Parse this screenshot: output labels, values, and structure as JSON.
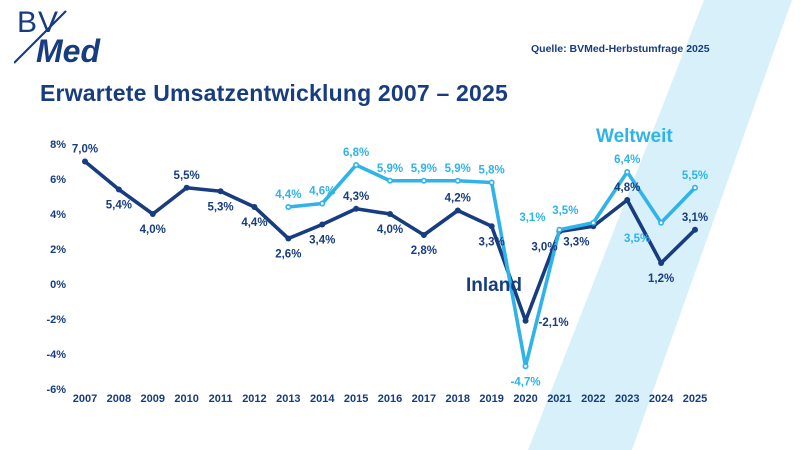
{
  "logo": {
    "line1": "BV",
    "line2": "Med"
  },
  "source_note": "Quelle: BVMed-Herbstumfrage 2025",
  "title": "Erwartete Umsatzentwicklung 2007 – 2025",
  "colors": {
    "navy": "#173c7f",
    "sky": "#2fb3e8",
    "band": "#d8f0fa"
  },
  "chart_data": {
    "type": "line",
    "title": "Erwartete Umsatzentwicklung 2007 – 2025",
    "x": [
      2007,
      2008,
      2009,
      2010,
      2011,
      2012,
      2013,
      2014,
      2015,
      2016,
      2017,
      2018,
      2019,
      2020,
      2021,
      2022,
      2023,
      2024,
      2025
    ],
    "ylim": [
      -6,
      8
    ],
    "ytick_labels": [
      "8%",
      "6%",
      "4%",
      "2%",
      "0%",
      "-2%",
      "-4%",
      "-6%"
    ],
    "grid": false,
    "legend_position": "inline-labels",
    "decimal_separator": ",",
    "series": [
      {
        "name": "Inland",
        "color_key": "navy",
        "start_year": 2007,
        "values": [
          7.0,
          5.4,
          4.0,
          5.5,
          5.3,
          4.4,
          2.6,
          3.4,
          4.3,
          4.0,
          2.8,
          4.2,
          3.3,
          -2.1,
          3.0,
          3.3,
          4.8,
          1.2,
          3.1
        ],
        "label_mode": "peaks",
        "name_label": {
          "x": 466,
          "y": 179
        },
        "label_overrides": {
          "2020": {
            "dx": 13,
            "dy": 5,
            "anchor": "start"
          },
          "2021": {
            "dx": -15
          },
          "2022": {
            "dx": -17
          }
        }
      },
      {
        "name": "Weltweit",
        "color_key": "sky",
        "start_year": 2013,
        "values": [
          4.4,
          4.6,
          6.8,
          5.9,
          5.9,
          5.9,
          5.8,
          -4.7,
          3.1,
          3.5,
          6.4,
          3.5,
          5.5
        ],
        "label_mode": "above",
        "marker_center": "white",
        "name_label": {
          "x": 596,
          "y": 30
        },
        "label_overrides": {
          "2021": {
            "dx": -27
          },
          "2022": {
            "dx": -28
          },
          "2024": {
            "dx": -24,
            "dy": 19
          }
        }
      }
    ]
  }
}
